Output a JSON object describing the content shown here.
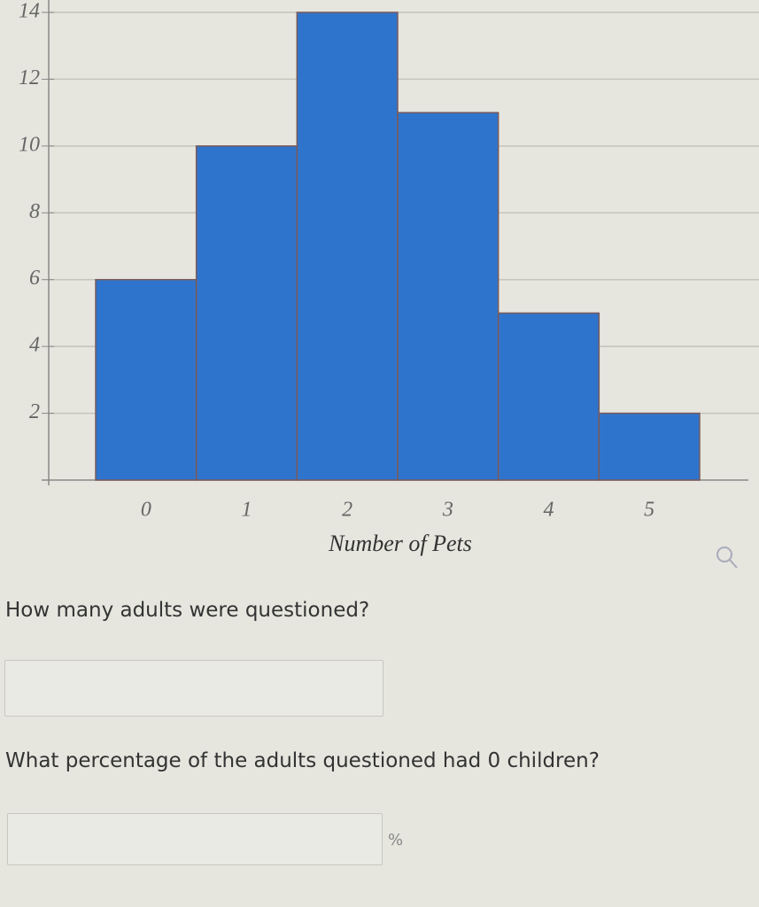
{
  "chart_data": {
    "type": "bar",
    "x_label": "Number of Pets",
    "categories": [
      "0",
      "1",
      "2",
      "3",
      "4",
      "5"
    ],
    "values": [
      6,
      10,
      14,
      11,
      5,
      2
    ],
    "color": "#2f74cc",
    "ylim": [
      0,
      14
    ],
    "yticks": [
      2,
      4,
      6,
      8,
      10,
      12,
      14
    ],
    "grid": true
  },
  "questions": [
    {
      "text": "How many adults were questioned?"
    },
    {
      "text": "What percentage of the adults questioned had 0 children?",
      "unit": "%"
    }
  ]
}
